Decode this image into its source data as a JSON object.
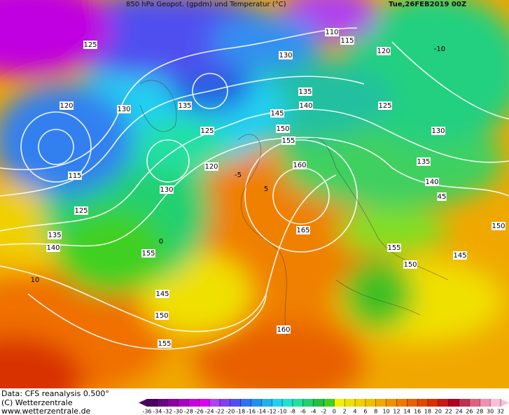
{
  "header": {
    "title": "850 hPa Geopot. (gpdm) und Temperatur (°C)",
    "date": "Tue,26FEB2019 00Z"
  },
  "footer": {
    "lines": [
      "Data: CFS reanalysis 0.500°",
      "(C) Wetterzentrale",
      "www.wetterzentrale.de"
    ]
  },
  "colorbar": {
    "ticks": [
      -36,
      -34,
      -32,
      -30,
      -28,
      -26,
      -24,
      -22,
      -20,
      -18,
      -16,
      -14,
      -12,
      -10,
      -8,
      -6,
      -4,
      -2,
      0,
      2,
      4,
      6,
      8,
      10,
      12,
      14,
      16,
      18,
      20,
      22,
      24,
      26,
      28,
      30,
      32
    ],
    "colors": [
      "#4b0060",
      "#6a0080",
      "#8a00a0",
      "#a800c0",
      "#c800e0",
      "#e000f0",
      "#b040f0",
      "#8040f0",
      "#5050f0",
      "#3070f0",
      "#2090f0",
      "#20b0f0",
      "#20d0f0",
      "#20e0d0",
      "#20e0a0",
      "#20d070",
      "#20c040",
      "#40d020",
      "#f0f000",
      "#f0e000",
      "#f0d000",
      "#f0c000",
      "#f0a800",
      "#f09000",
      "#f07800",
      "#e86000",
      "#e04800",
      "#d83000",
      "#c81818",
      "#b00020",
      "#c03050",
      "#e06080",
      "#f090b0",
      "#f8c0d8"
    ]
  },
  "map": {
    "contour_labels": [
      "110",
      "115",
      "125",
      "120",
      "130",
      "130",
      "135",
      "120",
      "135",
      "140",
      "145",
      "150",
      "155",
      "125",
      "120",
      "130",
      "115",
      "125",
      "135",
      "140",
      "125",
      "130",
      "135",
      "140",
      "45",
      "150",
      "145",
      "150",
      "155",
      "160",
      "165",
      "155",
      "145",
      "150",
      "160",
      "155",
      "-10",
      "-5",
      "0",
      "5",
      "10"
    ]
  }
}
